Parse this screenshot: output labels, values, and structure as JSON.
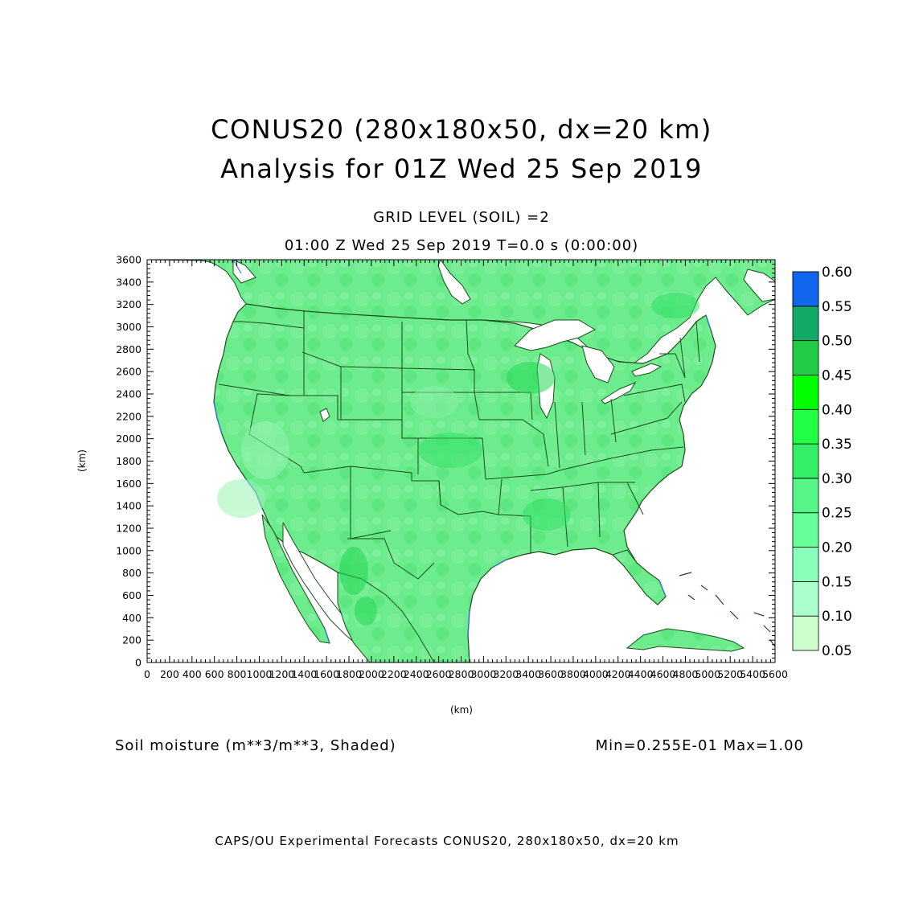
{
  "title_line1": "CONUS20 (280x180x50, dx=20 km)",
  "title_line2": "Analysis for 01Z Wed 25 Sep 2019",
  "subtitle_level": "GRID LEVEL (SOIL) =2",
  "subtitle_time": "01:00 Z Wed 25 Sep 2019    T=0.0 s (0:00:00)",
  "axes": {
    "x_unit": "(km)",
    "y_unit": "(km)",
    "x_range": [
      0,
      5600
    ],
    "y_range": [
      0,
      3600
    ],
    "x_ticks": [
      "0",
      "200",
      "400",
      "600",
      "800",
      "1000",
      "1200",
      "1400",
      "1600",
      "1800",
      "2000",
      "2200",
      "2400",
      "2600",
      "2800",
      "3000",
      "3200",
      "3400",
      "3600",
      "3800",
      "4000",
      "4200",
      "4400",
      "4600",
      "4800",
      "5000",
      "5200",
      "5400",
      "5600"
    ],
    "y_ticks": [
      "0",
      "200",
      "400",
      "600",
      "800",
      "1000",
      "1200",
      "1400",
      "1600",
      "1800",
      "2000",
      "2200",
      "2400",
      "2600",
      "2800",
      "3000",
      "3200",
      "3400",
      "3600"
    ]
  },
  "colorbar": {
    "labels": [
      "0.05",
      "0.10",
      "0.15",
      "0.20",
      "0.25",
      "0.30",
      "0.35",
      "0.40",
      "0.45",
      "0.50",
      "0.55",
      "0.60"
    ],
    "colors": [
      "#ccffcc",
      "#aaffcc",
      "#88ffbb",
      "#66ff99",
      "#55f588",
      "#33ee66",
      "#22ff44",
      "#00ff00",
      "#22cc44",
      "#11aa66",
      "#119988",
      "#1166ee"
    ]
  },
  "variable_label": "Soil moisture (m**3/m**3, Shaded)",
  "minmax_label": "Min=0.255E-01 Max=1.00",
  "footer": "CAPS/OU Experimental Forecasts  CONUS20, 280x180x50, dx=20 km",
  "colors": {
    "land_fill": "#66ee88",
    "land_border": "#1a4d1a",
    "water": "#ffffff",
    "coast_edge": "#3377ee"
  }
}
